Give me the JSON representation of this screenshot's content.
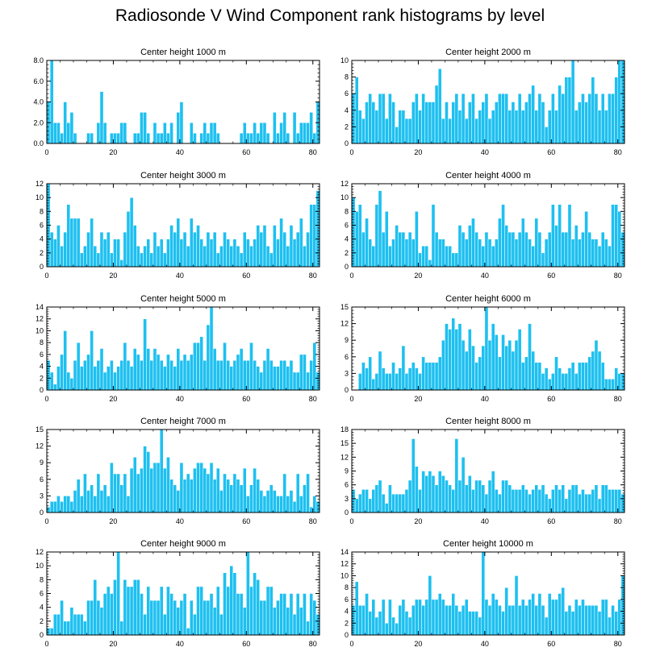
{
  "figure": {
    "title": "Radiosonde V Wind Component rank histograms by level",
    "colors": {
      "bar": "#1ec0f0",
      "bar_edge": "#ffffff",
      "axis": "#000000"
    }
  },
  "chart_data": [
    {
      "type": "bar",
      "title": "Center height 1000 m",
      "ylim": [
        0,
        8
      ],
      "yticks": [
        "0.0",
        "2.0",
        "4.0",
        "6.0",
        "8.0"
      ],
      "xlim": [
        0,
        82
      ],
      "xticks": [
        "0",
        "20",
        "40",
        "60",
        "80"
      ],
      "values": [
        4,
        8,
        2,
        2,
        1,
        4,
        2,
        3,
        1,
        0,
        0,
        0,
        1,
        1,
        0,
        2,
        5,
        2,
        0,
        1,
        1,
        1,
        2,
        2,
        0,
        0,
        1,
        1,
        3,
        3,
        1,
        0,
        2,
        1,
        1,
        2,
        1,
        2,
        0,
        3,
        4,
        0,
        0,
        2,
        1,
        0,
        1,
        2,
        1,
        2,
        2,
        1,
        0,
        0,
        0,
        0,
        0,
        0,
        1,
        2,
        1,
        1,
        2,
        1,
        2,
        2,
        1,
        0,
        3,
        1,
        2,
        3,
        1,
        0,
        3,
        1,
        2,
        2,
        2,
        3,
        1,
        4
      ]
    },
    {
      "type": "bar",
      "title": "Center height 2000 m",
      "ylim": [
        0,
        10
      ],
      "yticks": [
        "0",
        "2",
        "4",
        "6",
        "8",
        "10"
      ],
      "xlim": [
        0,
        82
      ],
      "xticks": [
        "0",
        "20",
        "40",
        "60",
        "80"
      ],
      "values": [
        6,
        8,
        4,
        3,
        5,
        6,
        5,
        4,
        6,
        6,
        3,
        6,
        5,
        2,
        4,
        4,
        3,
        3,
        5,
        6,
        4,
        6,
        5,
        5,
        5,
        7,
        9,
        3,
        5,
        3,
        5,
        6,
        4,
        6,
        3,
        5,
        6,
        3,
        4,
        5,
        6,
        3,
        4,
        5,
        6,
        6,
        6,
        4,
        5,
        4,
        6,
        4,
        5,
        6,
        7,
        4,
        6,
        5,
        2,
        4,
        6,
        4,
        7,
        6,
        8,
        8,
        10,
        4,
        5,
        6,
        5,
        6,
        8,
        6,
        4,
        6,
        4,
        6,
        6,
        8,
        10,
        10
      ]
    },
    {
      "type": "bar",
      "title": "Center height 3000 m",
      "ylim": [
        0,
        12
      ],
      "yticks": [
        "0",
        "2",
        "4",
        "6",
        "8",
        "10",
        "12"
      ],
      "xlim": [
        0,
        82
      ],
      "xticks": [
        "0",
        "20",
        "40",
        "60",
        "80"
      ],
      "values": [
        12,
        5,
        4,
        6,
        3,
        5,
        9,
        7,
        7,
        7,
        2,
        3,
        5,
        7,
        3,
        2,
        5,
        4,
        5,
        2,
        4,
        4,
        1,
        5,
        8,
        10,
        6,
        3,
        2,
        3,
        4,
        2,
        5,
        3,
        4,
        2,
        4,
        6,
        5,
        7,
        4,
        5,
        3,
        7,
        5,
        6,
        4,
        3,
        5,
        4,
        5,
        2,
        3,
        5,
        4,
        3,
        4,
        3,
        2,
        5,
        4,
        3,
        4,
        6,
        5,
        6,
        3,
        2,
        6,
        4,
        7,
        5,
        3,
        6,
        4,
        5,
        7,
        3,
        5,
        9,
        9,
        11
      ]
    },
    {
      "type": "bar",
      "title": "Center height 4000 m",
      "ylim": [
        0,
        12
      ],
      "yticks": [
        "0",
        "2",
        "4",
        "6",
        "8",
        "10",
        "12"
      ],
      "xlim": [
        0,
        82
      ],
      "xticks": [
        "0",
        "20",
        "40",
        "60",
        "80"
      ],
      "values": [
        10,
        8,
        9,
        5,
        7,
        4,
        3,
        9,
        11,
        5,
        8,
        3,
        4,
        6,
        5,
        5,
        4,
        5,
        4,
        8,
        2,
        3,
        3,
        1,
        9,
        5,
        4,
        4,
        3,
        3,
        2,
        2,
        6,
        5,
        4,
        6,
        7,
        5,
        4,
        3,
        5,
        4,
        3,
        4,
        7,
        9,
        6,
        5,
        5,
        4,
        5,
        7,
        5,
        4,
        3,
        7,
        5,
        2,
        4,
        5,
        9,
        6,
        9,
        5,
        5,
        9,
        4,
        6,
        4,
        5,
        8,
        5,
        4,
        4,
        3,
        5,
        4,
        3,
        9,
        9,
        8,
        5
      ]
    },
    {
      "type": "bar",
      "title": "Center height 5000 m",
      "ylim": [
        0,
        14
      ],
      "yticks": [
        "0",
        "2",
        "4",
        "6",
        "8",
        "10",
        "12",
        "14"
      ],
      "xlim": [
        0,
        82
      ],
      "xticks": [
        "0",
        "20",
        "40",
        "60",
        "80"
      ],
      "values": [
        5,
        3,
        1,
        4,
        6,
        10,
        3,
        2,
        5,
        8,
        4,
        5,
        6,
        10,
        4,
        5,
        7,
        3,
        4,
        5,
        3,
        4,
        5,
        8,
        5,
        4,
        7,
        6,
        5,
        12,
        7,
        5,
        7,
        6,
        5,
        4,
        6,
        5,
        4,
        7,
        5,
        6,
        5,
        6,
        8,
        8,
        9,
        5,
        11,
        14,
        7,
        5,
        5,
        8,
        5,
        4,
        5,
        6,
        7,
        5,
        5,
        8,
        5,
        4,
        3,
        5,
        7,
        5,
        4,
        4,
        5,
        5,
        4,
        5,
        3,
        3,
        6,
        6,
        3,
        5,
        8,
        3
      ]
    },
    {
      "type": "bar",
      "title": "Center height 6000 m",
      "ylim": [
        0,
        15
      ],
      "yticks": [
        "0",
        "3",
        "6",
        "9",
        "12",
        "15"
      ],
      "xlim": [
        0,
        82
      ],
      "xticks": [
        "0",
        "20",
        "40",
        "60",
        "80"
      ],
      "values": [
        0,
        0,
        3,
        5,
        4,
        6,
        2,
        3,
        7,
        4,
        3,
        3,
        5,
        3,
        4,
        8,
        3,
        4,
        5,
        4,
        3,
        6,
        5,
        5,
        5,
        5,
        6,
        9,
        12,
        11,
        13,
        11,
        12,
        9,
        7,
        11,
        8,
        5,
        6,
        8,
        15,
        9,
        12,
        10,
        6,
        10,
        8,
        9,
        7,
        9,
        11,
        5,
        6,
        12,
        7,
        5,
        5,
        3,
        4,
        2,
        3,
        6,
        4,
        3,
        3,
        4,
        5,
        3,
        5,
        5,
        5,
        6,
        7,
        9,
        7,
        5,
        2,
        2,
        2,
        4,
        3,
        3
      ]
    },
    {
      "type": "bar",
      "title": "Center height 7000 m",
      "ylim": [
        0,
        15
      ],
      "yticks": [
        "0",
        "3",
        "6",
        "9",
        "12",
        "15"
      ],
      "xlim": [
        0,
        82
      ],
      "xticks": [
        "0",
        "20",
        "40",
        "60",
        "80"
      ],
      "values": [
        1,
        2,
        2,
        3,
        2,
        3,
        3,
        2,
        4,
        6,
        3,
        7,
        4,
        5,
        3,
        7,
        4,
        5,
        3,
        9,
        7,
        7,
        5,
        7,
        3,
        8,
        10,
        7,
        8,
        12,
        11,
        8,
        9,
        9,
        15,
        8,
        10,
        6,
        5,
        4,
        9,
        6,
        7,
        6,
        8,
        9,
        9,
        8,
        7,
        9,
        6,
        8,
        4,
        7,
        6,
        5,
        7,
        6,
        5,
        8,
        3,
        5,
        8,
        6,
        4,
        3,
        4,
        5,
        4,
        3,
        3,
        7,
        3,
        4,
        2,
        7,
        3,
        5,
        7,
        1,
        3,
        2
      ]
    },
    {
      "type": "bar",
      "title": "Center height 8000 m",
      "ylim": [
        0,
        18
      ],
      "yticks": [
        "0",
        "3",
        "6",
        "9",
        "12",
        "15",
        "18"
      ],
      "xlim": [
        0,
        82
      ],
      "xticks": [
        "0",
        "20",
        "40",
        "60",
        "80"
      ],
      "values": [
        5,
        3,
        4,
        5,
        5,
        3,
        5,
        6,
        7,
        4,
        2,
        6,
        4,
        4,
        4,
        4,
        5,
        7,
        16,
        10,
        5,
        9,
        8,
        9,
        8,
        6,
        9,
        8,
        7,
        6,
        5,
        16,
        7,
        12,
        6,
        8,
        5,
        7,
        7,
        6,
        4,
        7,
        9,
        5,
        4,
        7,
        7,
        6,
        5,
        5,
        5,
        6,
        5,
        4,
        5,
        6,
        5,
        6,
        4,
        3,
        5,
        6,
        5,
        6,
        3,
        5,
        6,
        6,
        4,
        5,
        4,
        4,
        5,
        6,
        3,
        6,
        6,
        5,
        5,
        5,
        5,
        4
      ]
    },
    {
      "type": "bar",
      "title": "Center height 9000 m",
      "ylim": [
        0,
        12
      ],
      "yticks": [
        "0",
        "2",
        "4",
        "6",
        "8",
        "10",
        "12"
      ],
      "xlim": [
        0,
        82
      ],
      "xticks": [
        "0",
        "20",
        "40",
        "60",
        "80"
      ],
      "values": [
        1,
        1,
        3,
        3,
        5,
        2,
        2,
        4,
        3,
        3,
        3,
        2,
        5,
        5,
        8,
        5,
        4,
        6,
        7,
        6,
        8,
        12,
        2,
        8,
        7,
        7,
        8,
        8,
        6,
        3,
        7,
        5,
        5,
        5,
        7,
        3,
        7,
        6,
        5,
        4,
        5,
        6,
        1,
        5,
        3,
        7,
        7,
        5,
        5,
        6,
        4,
        7,
        3,
        9,
        7,
        10,
        9,
        6,
        6,
        4,
        12,
        7,
        9,
        8,
        5,
        5,
        7,
        7,
        4,
        5,
        6,
        6,
        4,
        6,
        3,
        6,
        4,
        6,
        2,
        6,
        5,
        3
      ]
    },
    {
      "type": "bar",
      "title": "Center height 10000 m",
      "ylim": [
        0,
        14
      ],
      "yticks": [
        "0",
        "2",
        "4",
        "6",
        "8",
        "10",
        "12",
        "14"
      ],
      "xlim": [
        0,
        82
      ],
      "xticks": [
        "0",
        "20",
        "40",
        "60",
        "80"
      ],
      "values": [
        5,
        9,
        5,
        5,
        7,
        4,
        6,
        3,
        4,
        6,
        2,
        6,
        3,
        2,
        5,
        6,
        4,
        3,
        5,
        6,
        6,
        5,
        6,
        10,
        6,
        6,
        7,
        6,
        5,
        5,
        7,
        5,
        4,
        5,
        6,
        4,
        4,
        4,
        3,
        14,
        6,
        5,
        7,
        6,
        5,
        4,
        8,
        5,
        5,
        10,
        5,
        6,
        5,
        6,
        7,
        5,
        7,
        5,
        3,
        7,
        6,
        6,
        7,
        8,
        4,
        5,
        4,
        6,
        5,
        6,
        5,
        5,
        5,
        5,
        4,
        6,
        6,
        3,
        5,
        4,
        6,
        10
      ]
    }
  ]
}
